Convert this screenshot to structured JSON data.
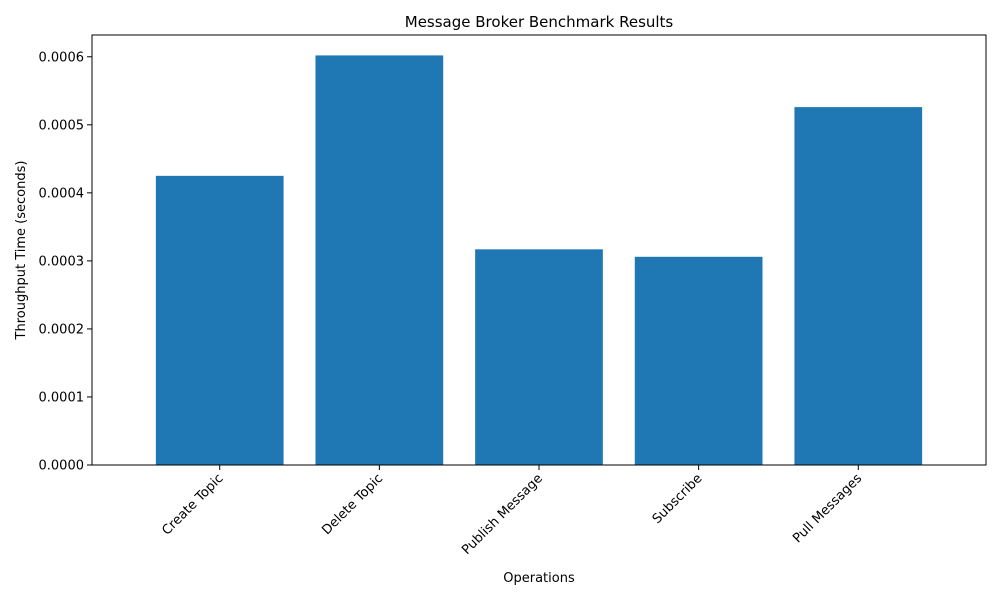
{
  "chart_data": {
    "type": "bar",
    "title": "Message Broker Benchmark Results",
    "xlabel": "Operations",
    "ylabel": "Throughput Time (seconds)",
    "categories": [
      "Create Topic",
      "Delete Topic",
      "Publish Message",
      "Subscribe",
      "Pull Messages"
    ],
    "values": [
      0.000425,
      0.000602,
      0.000317,
      0.000306,
      0.000526
    ],
    "ylim": [
      0,
      0.000632
    ],
    "yticks": [
      0.0,
      0.0001,
      0.0002,
      0.0003,
      0.0004,
      0.0005,
      0.0006
    ],
    "ytick_labels": [
      "0.0000",
      "0.0001",
      "0.0002",
      "0.0003",
      "0.0004",
      "0.0005",
      "0.0006"
    ],
    "bar_color": "#1f77b4",
    "grid": false,
    "xtick_rotation": "45 degrees"
  }
}
